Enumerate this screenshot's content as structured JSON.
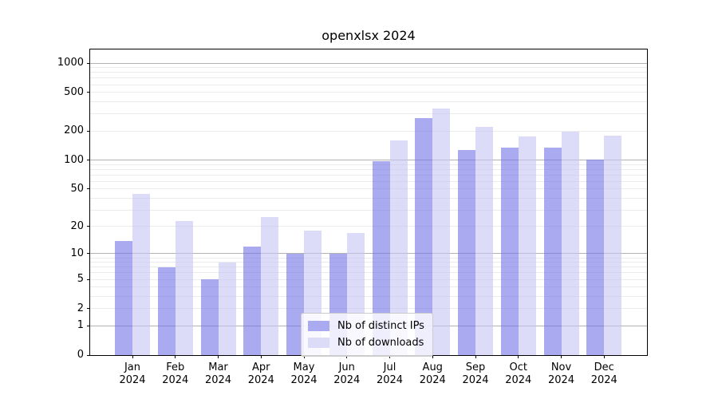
{
  "chart_data": {
    "type": "bar",
    "title": "openxlsx 2024",
    "yscale": "log1p",
    "grid": true,
    "legend_position": "lower center",
    "months": [
      "Jan",
      "Feb",
      "Mar",
      "Apr",
      "May",
      "Jun",
      "Jul",
      "Aug",
      "Sep",
      "Oct",
      "Nov",
      "Dec"
    ],
    "year": "2024",
    "categories": [
      "Jan 2024",
      "Feb 2024",
      "Mar 2024",
      "Apr 2024",
      "May 2024",
      "Jun 2024",
      "Jul 2024",
      "Aug 2024",
      "Sep 2024",
      "Oct 2024",
      "Nov 2024",
      "Dec 2024"
    ],
    "series": [
      {
        "name": "Nb of distinct IPs",
        "values": [
          14,
          7,
          5,
          12,
          10,
          10,
          97,
          270,
          128,
          135,
          135,
          102
        ],
        "fill": "rgba(113,113,230,0.6)",
        "legend_color": "#aaaaf0"
      },
      {
        "name": "Nb of downloads",
        "values": [
          44,
          23,
          8,
          25,
          18,
          17,
          160,
          340,
          220,
          175,
          198,
          180
        ],
        "fill": "rgba(197,197,243,0.6)",
        "legend_color": "#dcdcf8"
      }
    ],
    "y_ticks": [
      0,
      1,
      2,
      5,
      10,
      20,
      50,
      100,
      200,
      500,
      1000
    ],
    "ylim": [
      0,
      1380
    ],
    "gridlines": {
      "major": [
        1,
        10,
        100,
        1000
      ],
      "minor": [
        2,
        3,
        4,
        5,
        6,
        7,
        8,
        9,
        20,
        30,
        40,
        50,
        60,
        70,
        80,
        90,
        200,
        300,
        400,
        500,
        600,
        700,
        800,
        900
      ]
    },
    "colors": {
      "grid_major": "#b2b2b2",
      "grid_minor": "#ebebee",
      "axis": "#000000",
      "legend_border": "#cccccc"
    }
  }
}
